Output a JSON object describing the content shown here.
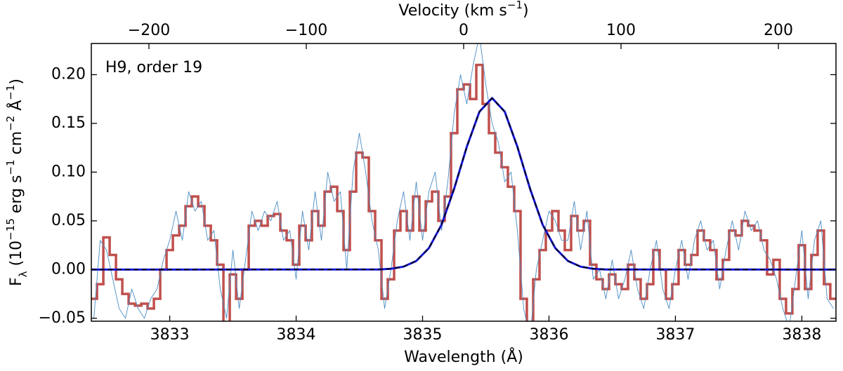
{
  "chart_data": {
    "type": "line",
    "annotation": "H9, order 19",
    "xlabel": "Wavelength (Å)",
    "ylabel": [
      {
        "text": "F"
      },
      {
        "text": "λ",
        "sub": true
      },
      {
        "text": " (10"
      },
      {
        "text": "−15",
        "sup": true
      },
      {
        "text": " erg s"
      },
      {
        "text": "−1",
        "sup": true
      },
      {
        "text": " cm"
      },
      {
        "text": "−2",
        "sup": true
      },
      {
        "text": " Å"
      },
      {
        "text": "−1",
        "sup": true
      },
      {
        "text": ")"
      }
    ],
    "x2label": [
      {
        "text": "Velocity (km s"
      },
      {
        "text": "−1",
        "sup": true
      },
      {
        "text": ")"
      }
    ],
    "xlim": [
      3832.38,
      3838.27
    ],
    "xticks": [
      3833,
      3834,
      3835,
      3836,
      3837,
      3838
    ],
    "ylim": [
      -0.053,
      0.232
    ],
    "yticks": [
      {
        "value": -0.05,
        "label": "−0.05"
      },
      {
        "value": 0.0,
        "label": "0.00"
      },
      {
        "value": 0.05,
        "label": "0.05"
      },
      {
        "value": 0.1,
        "label": "0.10"
      },
      {
        "value": 0.15,
        "label": "0.15"
      },
      {
        "value": 0.2,
        "label": "0.20"
      }
    ],
    "x2lim": [
      -236.6,
      236.6
    ],
    "x2ticks": [
      {
        "value": -200,
        "label": "−200"
      },
      {
        "value": -100,
        "label": "−100"
      },
      0,
      100,
      200
    ],
    "x": [
      3832.4,
      3832.45,
      3832.5,
      3832.55,
      3832.6,
      3832.65,
      3832.7,
      3832.75,
      3832.8,
      3832.85,
      3832.9,
      3832.95,
      3833.0,
      3833.05,
      3833.1,
      3833.15,
      3833.2,
      3833.25,
      3833.3,
      3833.35,
      3833.4,
      3833.45,
      3833.5,
      3833.55,
      3833.6,
      3833.65,
      3833.7,
      3833.75,
      3833.8,
      3833.85,
      3833.9,
      3833.95,
      3834.0,
      3834.05,
      3834.1,
      3834.15,
      3834.2,
      3834.25,
      3834.3,
      3834.35,
      3834.4,
      3834.45,
      3834.5,
      3834.55,
      3834.6,
      3834.65,
      3834.7,
      3834.75,
      3834.8,
      3834.85,
      3834.9,
      3834.95,
      3835.0,
      3835.05,
      3835.1,
      3835.15,
      3835.2,
      3835.25,
      3835.3,
      3835.35,
      3835.4,
      3835.45,
      3835.5,
      3835.55,
      3835.6,
      3835.65,
      3835.7,
      3835.75,
      3835.8,
      3835.85,
      3835.9,
      3835.95,
      3836.0,
      3836.05,
      3836.1,
      3836.15,
      3836.2,
      3836.25,
      3836.3,
      3836.35,
      3836.4,
      3836.45,
      3836.5,
      3836.55,
      3836.6,
      3836.65,
      3836.7,
      3836.75,
      3836.8,
      3836.85,
      3836.9,
      3836.95,
      3837.0,
      3837.05,
      3837.1,
      3837.15,
      3837.2,
      3837.25,
      3837.3,
      3837.35,
      3837.4,
      3837.45,
      3837.5,
      3837.55,
      3837.6,
      3837.65,
      3837.7,
      3837.75,
      3837.8,
      3837.85,
      3837.9,
      3837.95,
      3838.0,
      3838.05,
      3838.1,
      3838.15,
      3838.2,
      3838.25
    ],
    "series": [
      {
        "color": "#c0504d",
        "width": 3.5,
        "step": true,
        "values": [
          -0.03,
          -0.015,
          0.033,
          0.015,
          -0.01,
          -0.025,
          -0.035,
          -0.037,
          -0.035,
          -0.04,
          -0.03,
          0.0,
          0.02,
          0.035,
          0.045,
          0.065,
          0.075,
          0.065,
          0.045,
          0.03,
          0.005,
          -0.07,
          -0.005,
          -0.03,
          0.0,
          0.045,
          0.05,
          0.045,
          0.055,
          0.057,
          0.04,
          0.03,
          0.005,
          0.045,
          0.03,
          0.06,
          0.045,
          0.08,
          0.085,
          0.06,
          0.02,
          0.08,
          0.12,
          0.115,
          0.06,
          0.03,
          -0.03,
          -0.01,
          0.04,
          0.06,
          0.04,
          0.075,
          0.04,
          0.07,
          0.08,
          0.05,
          0.075,
          0.14,
          0.185,
          0.19,
          0.175,
          0.21,
          0.17,
          0.14,
          0.12,
          0.105,
          0.085,
          0.06,
          -0.03,
          -0.06,
          -0.01,
          0.02,
          0.04,
          0.06,
          0.04,
          0.02,
          0.055,
          0.04,
          0.05,
          0.005,
          -0.01,
          -0.02,
          -0.005,
          -0.015,
          -0.02,
          0.005,
          -0.01,
          -0.03,
          -0.015,
          0.02,
          0.0,
          -0.03,
          -0.015,
          0.02,
          0.005,
          0.015,
          0.04,
          0.03,
          0.02,
          -0.01,
          0.01,
          0.04,
          0.035,
          0.05,
          0.045,
          0.04,
          0.03,
          -0.005,
          0.01,
          -0.03,
          -0.045,
          -0.02,
          0.025,
          -0.02,
          0.015,
          0.04,
          -0.015,
          -0.03
        ]
      },
      {
        "color": "#4a8cc4",
        "width": 0.9,
        "values": [
          -0.05,
          0.03,
          0.02,
          -0.01,
          -0.04,
          -0.05,
          -0.02,
          -0.04,
          -0.05,
          -0.03,
          -0.02,
          0.01,
          0.03,
          0.06,
          0.03,
          0.08,
          0.06,
          0.07,
          0.03,
          0.04,
          -0.02,
          -0.05,
          0.02,
          -0.04,
          0.01,
          0.06,
          0.04,
          0.06,
          0.05,
          0.07,
          0.03,
          0.04,
          -0.01,
          0.06,
          0.02,
          0.08,
          0.03,
          0.1,
          0.07,
          0.08,
          0.0,
          0.1,
          0.14,
          0.1,
          0.05,
          0.02,
          -0.04,
          0.0,
          0.05,
          0.08,
          0.03,
          0.09,
          0.03,
          0.08,
          0.1,
          0.04,
          0.09,
          0.16,
          0.2,
          0.17,
          0.21,
          0.24,
          0.19,
          0.15,
          0.13,
          0.09,
          0.1,
          0.04,
          -0.04,
          -0.07,
          0.0,
          0.03,
          0.06,
          0.05,
          0.03,
          0.03,
          0.07,
          0.02,
          0.06,
          -0.01,
          0.0,
          -0.03,
          0.01,
          -0.03,
          -0.01,
          0.02,
          -0.02,
          -0.04,
          0.0,
          0.03,
          -0.02,
          -0.04,
          0.0,
          0.03,
          -0.01,
          0.03,
          0.05,
          0.02,
          0.03,
          -0.02,
          0.02,
          0.05,
          0.02,
          0.06,
          0.04,
          0.05,
          0.02,
          0.01,
          -0.01,
          -0.04,
          -0.06,
          -0.01,
          0.04,
          -0.03,
          0.03,
          0.05,
          -0.03,
          -0.04
        ]
      },
      {
        "color": "#1515d8",
        "width": 3,
        "x": [
          3832.38,
          3834.65,
          3834.75,
          3834.85,
          3834.95,
          3835.05,
          3835.15,
          3835.25,
          3835.35,
          3835.45,
          3835.55,
          3835.65,
          3835.75,
          3835.85,
          3835.95,
          3836.05,
          3836.15,
          3836.25,
          3836.35,
          3836.45,
          3838.27
        ],
        "values": [
          0,
          0.0001,
          0.0008,
          0.003,
          0.0088,
          0.022,
          0.046,
          0.083,
          0.126,
          0.162,
          0.176,
          0.162,
          0.126,
          0.083,
          0.046,
          0.022,
          0.0088,
          0.003,
          0.0008,
          0.0001,
          0
        ]
      },
      {
        "color": "#000000",
        "width": 1.6,
        "dashed": true,
        "x": [
          3832.38,
          3834.65,
          3834.75,
          3834.85,
          3834.95,
          3835.05,
          3835.15,
          3835.25,
          3835.35,
          3835.45,
          3835.55,
          3835.65,
          3835.75,
          3835.85,
          3835.95,
          3836.05,
          3836.15,
          3836.25,
          3836.35,
          3836.45,
          3838.27
        ],
        "values": [
          0,
          0.0001,
          0.0008,
          0.003,
          0.0088,
          0.022,
          0.046,
          0.083,
          0.126,
          0.162,
          0.176,
          0.162,
          0.126,
          0.083,
          0.046,
          0.022,
          0.0088,
          0.003,
          0.0008,
          0.0001,
          0
        ]
      }
    ]
  }
}
